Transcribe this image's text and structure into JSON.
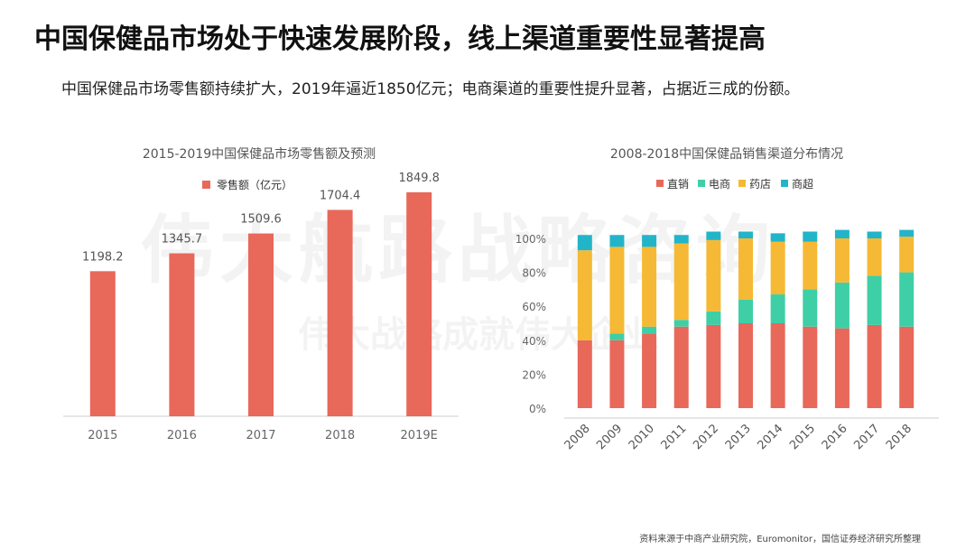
{
  "page": {
    "title": "中国保健品市场处于快速发展阶段，线上渠道重要性显著提高",
    "subtitle": "中国保健品市场零售额持续扩大，2019年逼近1850亿元；电商渠道的重要性提升显著，占据近三成的份额。",
    "watermark_main": "伟大航路战略咨询",
    "watermark_sub": "伟大战略成就伟大企业",
    "source": "资料来源于中商产业研究院，Euromonitor，国信证券经济研究所整理"
  },
  "chart_data": [
    {
      "type": "bar",
      "title": "2015-2019中国保健品市场零售额及预测",
      "legend": "零售额（亿元）",
      "categories": [
        "2015",
        "2016",
        "2017",
        "2018",
        "2019E"
      ],
      "values": [
        1198.2,
        1345.7,
        1509.6,
        1704.4,
        1849.8
      ],
      "value_labels": [
        "1198.2",
        "1345.7",
        "1509.6",
        "1704.4",
        "1849.8"
      ],
      "ylim": [
        0,
        2200
      ],
      "color": "#E8685A"
    },
    {
      "type": "bar",
      "stacked": true,
      "title": "2008-2018中国保健品销售渠道分布情况",
      "categories": [
        "2008",
        "2009",
        "2010",
        "2011",
        "2012",
        "2013",
        "2014",
        "2015",
        "2016",
        "2017",
        "2018"
      ],
      "yticks": [
        "0%",
        "20%",
        "40%",
        "60%",
        "80%",
        "100%"
      ],
      "ylim": [
        0,
        100
      ],
      "series": [
        {
          "name": "直销",
          "color": "#E8685A",
          "values": [
            40,
            40,
            44,
            48,
            49,
            50,
            50,
            48,
            47,
            49,
            48
          ]
        },
        {
          "name": "电商",
          "color": "#3ECFA6",
          "values": [
            0,
            4,
            4,
            4,
            8,
            14,
            17,
            22,
            27,
            29,
            32
          ]
        },
        {
          "name": "药店",
          "color": "#F5B935",
          "values": [
            53,
            51,
            47,
            45,
            42,
            36,
            31,
            28,
            26,
            22,
            21
          ]
        },
        {
          "name": "商超",
          "color": "#22B5C9",
          "values": [
            9,
            7,
            7,
            5,
            5,
            4,
            5,
            6,
            5,
            4,
            4
          ]
        }
      ]
    }
  ]
}
